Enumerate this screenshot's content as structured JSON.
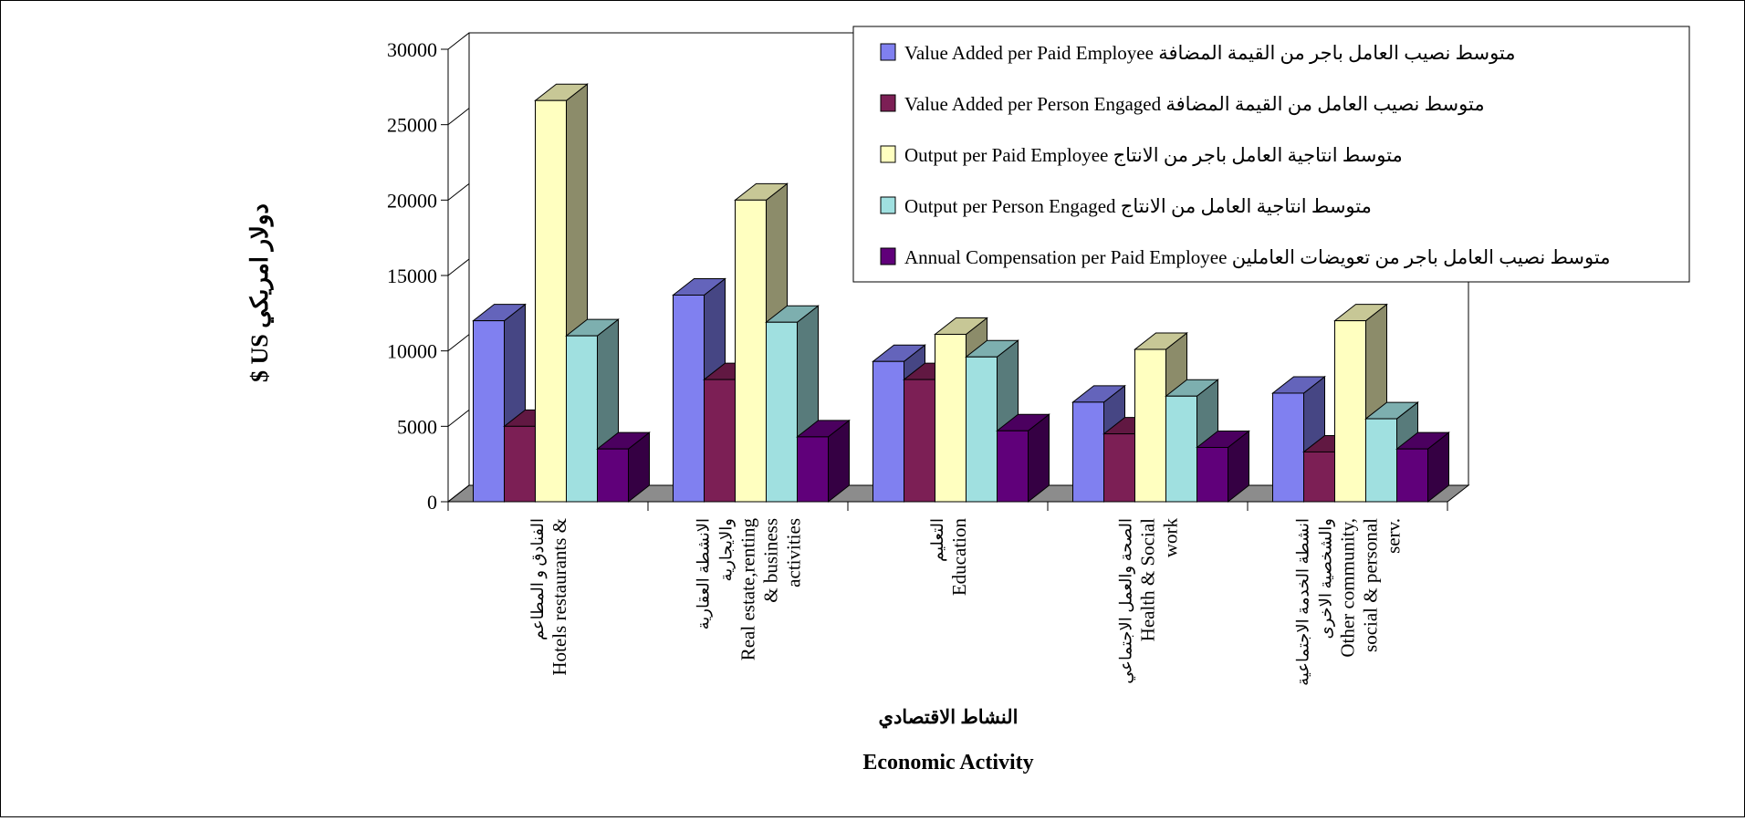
{
  "chart_data": {
    "type": "bar",
    "style": "3d-clustered-column",
    "ylabel": "دولار امريكي  US $",
    "xlabel_ar": "النشاط الاقتصادي",
    "xlabel_en": "Economic Activity",
    "ylim": [
      0,
      30000
    ],
    "y_ticks": [
      "0",
      "5000",
      "10000",
      "15000",
      "20000",
      "25000",
      "30000"
    ],
    "y_tick_values": [
      0,
      5000,
      10000,
      15000,
      20000,
      25000,
      30000
    ],
    "grid": false,
    "legend_position": "top-right",
    "categories": [
      {
        "lines": [
          "الفنادق و المطاعم",
          "Hotels restaurants &"
        ]
      },
      {
        "lines": [
          "الانشطة العقارية",
          "والايجارية",
          "Real estate,renting",
          "& business",
          "activities"
        ]
      },
      {
        "lines": [
          "التعليم",
          "Education"
        ]
      },
      {
        "lines": [
          "الصحة والعمل الاجتماعي",
          "Health & Social",
          "work"
        ]
      },
      {
        "lines": [
          "انشطة الخدمة الاجتماعية",
          "والشخصية الاخرى",
          "Other community,",
          "social & personal",
          "serv."
        ]
      }
    ],
    "series": [
      {
        "name": "Value Added per Paid  Employee  متوسط نصيب العامل  باجر من القيمة  المضافة",
        "color": "#8080f0",
        "values": [
          12000,
          13700,
          9300,
          6600,
          7200
        ]
      },
      {
        "name": "Value Added per Person Engaged متوسط نصيب العامل من القيمة المضافة",
        "color": "#7c1f55",
        "values": [
          5000,
          8100,
          8100,
          4500,
          3300
        ]
      },
      {
        "name": "Output per Paid Employee  متوسط انتاجية العامل  باجر من الانتاج",
        "color": "#ffffc0",
        "values": [
          26600,
          20000,
          11100,
          10100,
          12000
        ]
      },
      {
        "name": "Output per Person Engaged    متوسط انتاجية العامل  من الانتاج",
        "color": "#a0e0e0",
        "values": [
          11000,
          11900,
          9600,
          7000,
          5500
        ]
      },
      {
        "name": "Annual   Compensation  per  Paid Employee  متوسط نصيب العامل  باجر من تعويضات   العاملين",
        "color": "#60007a",
        "values": [
          3500,
          4300,
          4700,
          3600,
          3500
        ]
      }
    ]
  }
}
